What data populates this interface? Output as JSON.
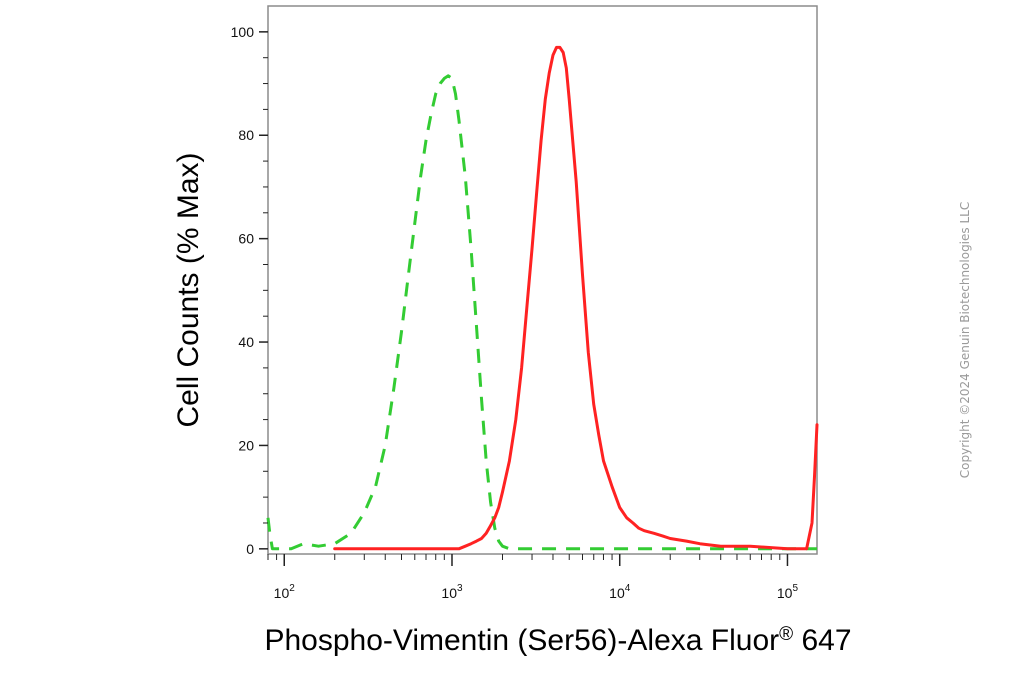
{
  "chart_data": {
    "type": "line",
    "xlabel_main": "Phospho-Vimentin (Ser56)-Alexa Fluor",
    "xlabel_reg": "®",
    "xlabel_tail": " 647",
    "ylabel": "Cell Counts (% Max)",
    "xscale": "log",
    "xlim": [
      80,
      150000
    ],
    "ylim": [
      -1,
      105
    ],
    "y_ticks": [
      0,
      20,
      40,
      60,
      80,
      100
    ],
    "x_ticks": [
      {
        "value": 100,
        "base": "10",
        "exp": "2"
      },
      {
        "value": 1000,
        "base": "10",
        "exp": "3"
      },
      {
        "value": 10000,
        "base": "10",
        "exp": "4"
      },
      {
        "value": 100000,
        "base": "10",
        "exp": "5"
      }
    ],
    "grid": false,
    "legend": "none",
    "series": [
      {
        "color": "#33cc33",
        "style": "dashed",
        "x": [
          80,
          82,
          85,
          95,
          110,
          130,
          160,
          200,
          250,
          300,
          350,
          400,
          450,
          500,
          550,
          600,
          650,
          700,
          750,
          800,
          850,
          900,
          950,
          1000,
          1050,
          1100,
          1200,
          1300,
          1400,
          1500,
          1600,
          1700,
          1800,
          1900,
          2000,
          2200,
          2500,
          3000,
          5000,
          10000,
          30000,
          100000,
          150000
        ],
        "y": [
          6,
          3,
          0,
          0,
          0,
          1,
          0.5,
          1,
          3,
          7,
          12,
          20,
          31,
          42,
          53,
          63,
          72,
          79,
          84,
          88,
          90,
          91,
          91.5,
          91,
          88,
          83,
          72,
          58,
          43,
          29,
          17,
          9,
          4,
          1.5,
          0.5,
          0,
          0,
          0,
          0,
          0,
          0,
          0,
          0
        ]
      },
      {
        "color": "#ff2222",
        "style": "solid",
        "x": [
          200,
          400,
          600,
          800,
          1000,
          1100,
          1200,
          1300,
          1400,
          1500,
          1600,
          1700,
          1800,
          1900,
          2000,
          2200,
          2400,
          2600,
          2800,
          3000,
          3200,
          3400,
          3600,
          3800,
          4000,
          4200,
          4400,
          4600,
          4800,
          5000,
          5500,
          6000,
          6500,
          7000,
          7500,
          8000,
          9000,
          10000,
          11000,
          12000,
          13000,
          14000,
          16000,
          18000,
          20000,
          25000,
          30000,
          40000,
          60000,
          100000,
          130000,
          140000,
          145000,
          150000
        ],
        "y": [
          0,
          0,
          0,
          0,
          0,
          0,
          0.5,
          1,
          1.5,
          2,
          3,
          4.5,
          6,
          8,
          11,
          17,
          25,
          35,
          47,
          58,
          69,
          79,
          87,
          92,
          95.5,
          97,
          97,
          96,
          93,
          87,
          71,
          53,
          38,
          28,
          22,
          17,
          12,
          8,
          6,
          5,
          4,
          3.5,
          3,
          2.5,
          2,
          1.5,
          1,
          0.5,
          0.5,
          0,
          0,
          5,
          14,
          24
        ]
      }
    ]
  },
  "copyright": "Copyright ©2024 Genuin Biotechnologies LLC"
}
